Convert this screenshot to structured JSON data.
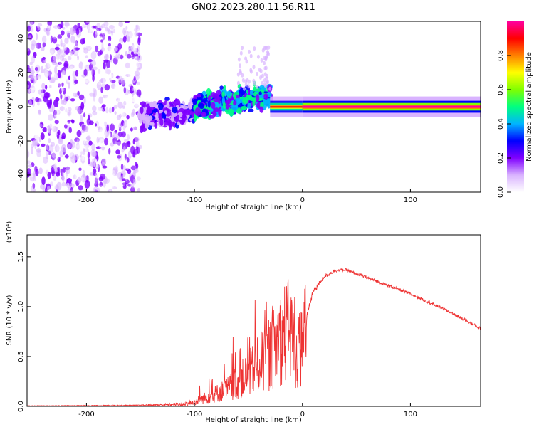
{
  "figure": {
    "title": "GN02.2023.280.11.56.R11"
  },
  "chart_data": [
    {
      "type": "heatmap",
      "xlabel": "Height of straight line (km)",
      "ylabel": "Frequency (Hz)",
      "xlim": [
        -255,
        165
      ],
      "ylim": [
        -50,
        50
      ],
      "xticks": [
        "-200",
        "-100",
        "0",
        "100"
      ],
      "xtick_values": [
        -200,
        -100,
        0,
        100
      ],
      "yticks": [
        "-40",
        "-20",
        "0",
        "20",
        "40"
      ],
      "ytick_values": [
        -40,
        -20,
        0,
        20,
        40
      ],
      "grid": false,
      "description_of_structure": [
        {
          "x_range": [
            -255,
            -150
          ],
          "frequency_range": [
            -50,
            50
          ],
          "amplitude": [
            0.0,
            0.25
          ]
        },
        {
          "x_range": [
            -150,
            -100
          ],
          "frequency_range": [
            -20,
            10
          ],
          "amplitude": [
            0.05,
            0.3
          ]
        },
        {
          "x_range": [
            -100,
            -30
          ],
          "frequency_range": [
            -15,
            15
          ],
          "amplitude": [
            0.15,
            0.55
          ]
        },
        {
          "x_range": [
            -30,
            0
          ],
          "frequency_range": [
            -3,
            3
          ],
          "amplitude": [
            0.3,
            0.95
          ]
        },
        {
          "x_range": [
            0,
            165
          ],
          "frequency_range": [
            -3,
            3
          ],
          "amplitude": [
            0.5,
            1.0
          ]
        }
      ],
      "colorbar": {
        "label": "Normalized spectral amplitude",
        "ticks": [
          "0.0",
          "0.2",
          "0.4",
          "0.6",
          "0.8"
        ],
        "tick_values": [
          0.0,
          0.2,
          0.4,
          0.6,
          0.8
        ],
        "range": [
          0,
          1
        ],
        "colors": [
          "#ffffff",
          "#d9b3ff",
          "#8000ff",
          "#0000ff",
          "#00b4ff",
          "#00ff80",
          "#80ff00",
          "#ffff00",
          "#ff8000",
          "#ff0000",
          "#ff00a0"
        ]
      }
    },
    {
      "type": "line",
      "xlabel": "Height of straight line (km)",
      "ylabel": "SNR (10 * v/v)",
      "scale_label": "(x10⁴)",
      "xlim": [
        -255,
        165
      ],
      "ylim": [
        0,
        1.72
      ],
      "xticks": [
        "-200",
        "-100",
        "0",
        "100"
      ],
      "xtick_values": [
        -200,
        -100,
        0,
        100
      ],
      "yticks": [
        "0.0",
        "0.5",
        "1.0",
        "1.5"
      ],
      "ytick_values": [
        0.0,
        0.5,
        1.0,
        1.5
      ],
      "grid": false,
      "series": [
        {
          "color": "#ee3333",
          "x": [
            -255,
            -150,
            -110,
            -100,
            -90,
            -80,
            -70,
            -60,
            -50,
            -40,
            -30,
            -25,
            -20,
            -15,
            -10,
            -5,
            0,
            5,
            10,
            20,
            30,
            40,
            50,
            70,
            90,
            110,
            130,
            150,
            165
          ],
          "y": [
            0.005,
            0.01,
            0.02,
            0.05,
            0.1,
            0.15,
            0.2,
            0.28,
            0.38,
            0.5,
            0.62,
            0.72,
            0.8,
            0.9,
            0.85,
            0.6,
            0.75,
            0.95,
            1.15,
            1.3,
            1.36,
            1.37,
            1.33,
            1.25,
            1.17,
            1.08,
            0.98,
            0.87,
            0.78
          ],
          "noise_envelope": [
            0.002,
            0.005,
            0.02,
            0.1,
            0.22,
            0.3,
            0.38,
            0.5,
            0.65,
            0.8,
            0.7,
            0.6,
            0.5,
            0.4,
            0.35,
            0.25,
            0.08,
            0.04,
            0.03,
            0.02,
            0.015,
            0.015,
            0.015,
            0.015,
            0.015,
            0.015,
            0.015,
            0.015,
            0.015
          ]
        }
      ]
    }
  ]
}
